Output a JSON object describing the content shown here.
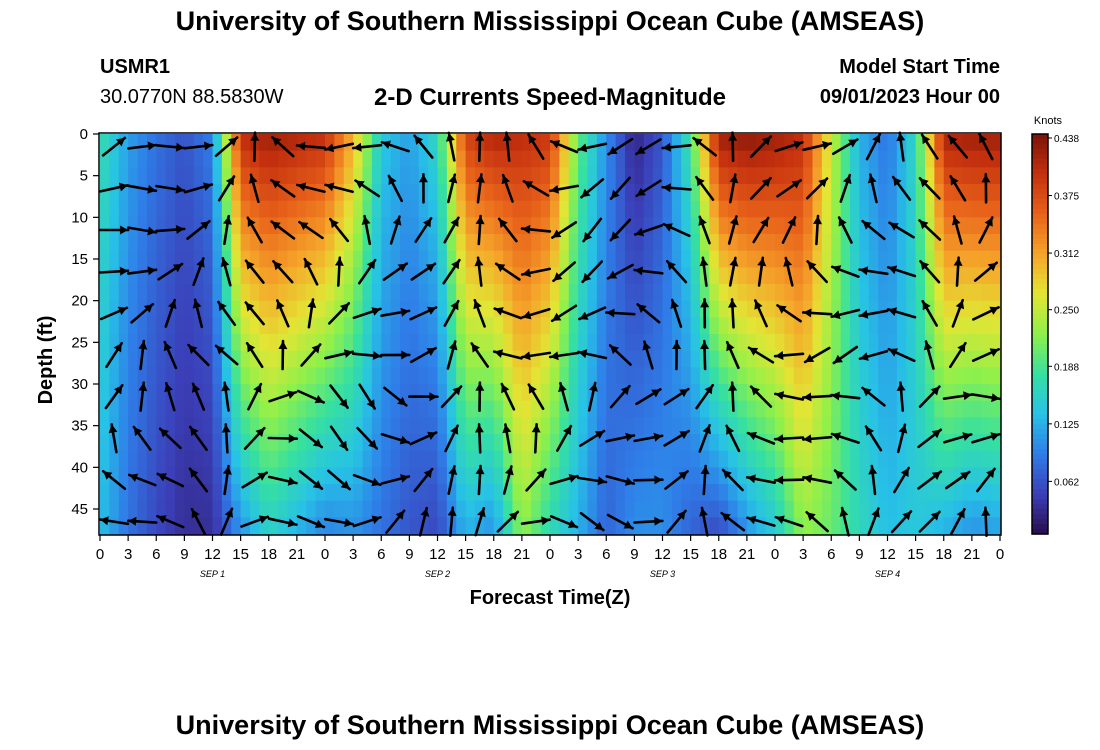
{
  "header": {
    "title": "University of Southern Mississippi Ocean Cube (AMSEAS)",
    "station_id": "USMR1",
    "coords": "30.0770N  88.5830W",
    "subtitle": "2-D Currents Speed-Magnitude",
    "model_start_label": "Model Start Time",
    "model_start_value": "09/01/2023 Hour 00"
  },
  "footer": {
    "title": "University of Southern Mississippi Ocean Cube (AMSEAS)"
  },
  "colors": {
    "palette": [
      "#2a0d4d",
      "#3b3fb8",
      "#2f7de8",
      "#27c2e6",
      "#36e0a0",
      "#8ff04a",
      "#e3e534",
      "#f5a42a",
      "#e8621a",
      "#c4300e",
      "#7a1306"
    ]
  },
  "chart_data": {
    "type": "heatmap",
    "title": "2-D Currents Speed-Magnitude",
    "xlabel": "Forecast Time(Z)",
    "ylabel": "Depth (ft)",
    "x_tick_labels": [
      "0",
      "3",
      "6",
      "9",
      "12",
      "15",
      "18",
      "21",
      "0",
      "3",
      "6",
      "9",
      "12",
      "15",
      "18",
      "21",
      "0",
      "3",
      "6",
      "9",
      "12",
      "15",
      "18",
      "21",
      "0",
      "3",
      "6",
      "9",
      "12",
      "15",
      "18",
      "21",
      "0"
    ],
    "x_range_hours": [
      0,
      96
    ],
    "day_labels": [
      {
        "label": "SEP 1",
        "hour": 12
      },
      {
        "label": "SEP 2",
        "hour": 36
      },
      {
        "label": "SEP 3",
        "hour": 60
      },
      {
        "label": "SEP 4",
        "hour": 84
      }
    ],
    "y_ticks": [
      0,
      5,
      10,
      15,
      20,
      25,
      30,
      35,
      40,
      45
    ],
    "y_range_ft": [
      0,
      48
    ],
    "colorbar": {
      "label": "Knots",
      "range": [
        0.0,
        0.438
      ],
      "ticks": [
        "0.062",
        "0.125",
        "0.188",
        "0.250",
        "0.312",
        "0.375",
        "0.438"
      ]
    },
    "speed_profile": {
      "hours": [
        0,
        3,
        6,
        9,
        12,
        15,
        18,
        21,
        24,
        27,
        30,
        33,
        36,
        39,
        42,
        45,
        48,
        51,
        54,
        57,
        60,
        63,
        66,
        69,
        72,
        75,
        78,
        81,
        84,
        87,
        90,
        93,
        96
      ],
      "surface_knots": [
        0.17,
        0.11,
        0.08,
        0.06,
        0.09,
        0.4,
        0.42,
        0.41,
        0.4,
        0.3,
        0.14,
        0.11,
        0.16,
        0.38,
        0.41,
        0.4,
        0.39,
        0.2,
        0.1,
        0.02,
        0.06,
        0.18,
        0.42,
        0.43,
        0.42,
        0.4,
        0.25,
        0.12,
        0.08,
        0.16,
        0.41,
        0.42,
        0.42
      ],
      "bottom_knots": [
        0.13,
        0.08,
        0.05,
        0.03,
        0.03,
        0.1,
        0.15,
        0.12,
        0.09,
        0.1,
        0.08,
        0.06,
        0.05,
        0.12,
        0.1,
        0.22,
        0.16,
        0.12,
        0.07,
        0.1,
        0.1,
        0.07,
        0.05,
        0.1,
        0.14,
        0.22,
        0.2,
        0.16,
        0.13,
        0.14,
        0.12,
        0.1,
        0.11
      ]
    }
  }
}
